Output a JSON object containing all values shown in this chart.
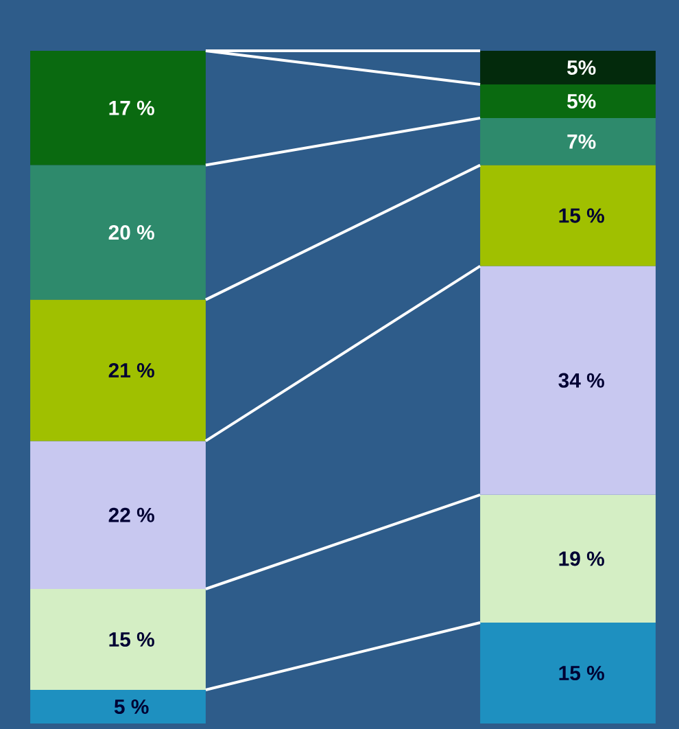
{
  "chart_data": {
    "type": "bar",
    "stacked": true,
    "categories": [
      null,
      null
    ],
    "series": [
      {
        "color": "#1e90c0",
        "values": [
          5,
          15
        ],
        "value_labels": [
          "5 %",
          "15 %"
        ]
      },
      {
        "color": "#d4eec4",
        "values": [
          15,
          19
        ],
        "value_labels": [
          "15 %",
          "19 %"
        ]
      },
      {
        "color": "#c8c8f0",
        "values": [
          22,
          34
        ],
        "value_labels": [
          "22 %",
          "34 %"
        ]
      },
      {
        "color": "#a0c000",
        "values": [
          21,
          15
        ],
        "value_labels": [
          "21 %",
          "15 %"
        ]
      },
      {
        "color": "#2e8a6c",
        "values": [
          20,
          7
        ],
        "value_labels": [
          "20 %",
          "7%"
        ]
      },
      {
        "color": "#0a6a10",
        "values": [
          17,
          5
        ],
        "value_labels": [
          "17 %",
          "5%"
        ]
      },
      {
        "color": "#032a0c",
        "values": [
          null,
          5
        ],
        "value_labels": [
          null,
          "5%"
        ]
      }
    ]
  }
}
